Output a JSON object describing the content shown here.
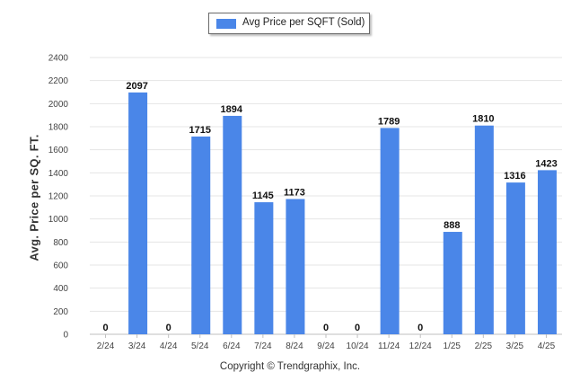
{
  "chart_data": {
    "type": "bar",
    "categories": [
      "2/24",
      "3/24",
      "4/24",
      "5/24",
      "6/24",
      "7/24",
      "8/24",
      "9/24",
      "10/24",
      "11/24",
      "12/24",
      "1/25",
      "2/25",
      "3/25",
      "4/25"
    ],
    "series": [
      {
        "name": "Avg Price per SQFT (Sold)",
        "values": [
          0,
          2097,
          0,
          1715,
          1894,
          1145,
          1173,
          0,
          0,
          1789,
          0,
          888,
          1810,
          1316,
          1423
        ]
      }
    ],
    "ylabel": "Avg. Price per SQ. FT.",
    "xlabel": "",
    "ylim": [
      0,
      2400
    ],
    "yticks": [
      0,
      200,
      400,
      600,
      800,
      1000,
      1200,
      1400,
      1600,
      1800,
      2000,
      2200,
      2400
    ],
    "grid": true,
    "legend_position": "top-center",
    "bar_color": "#4a86e8"
  },
  "footer": {
    "copyright": "Copyright © Trendgraphix, Inc."
  }
}
